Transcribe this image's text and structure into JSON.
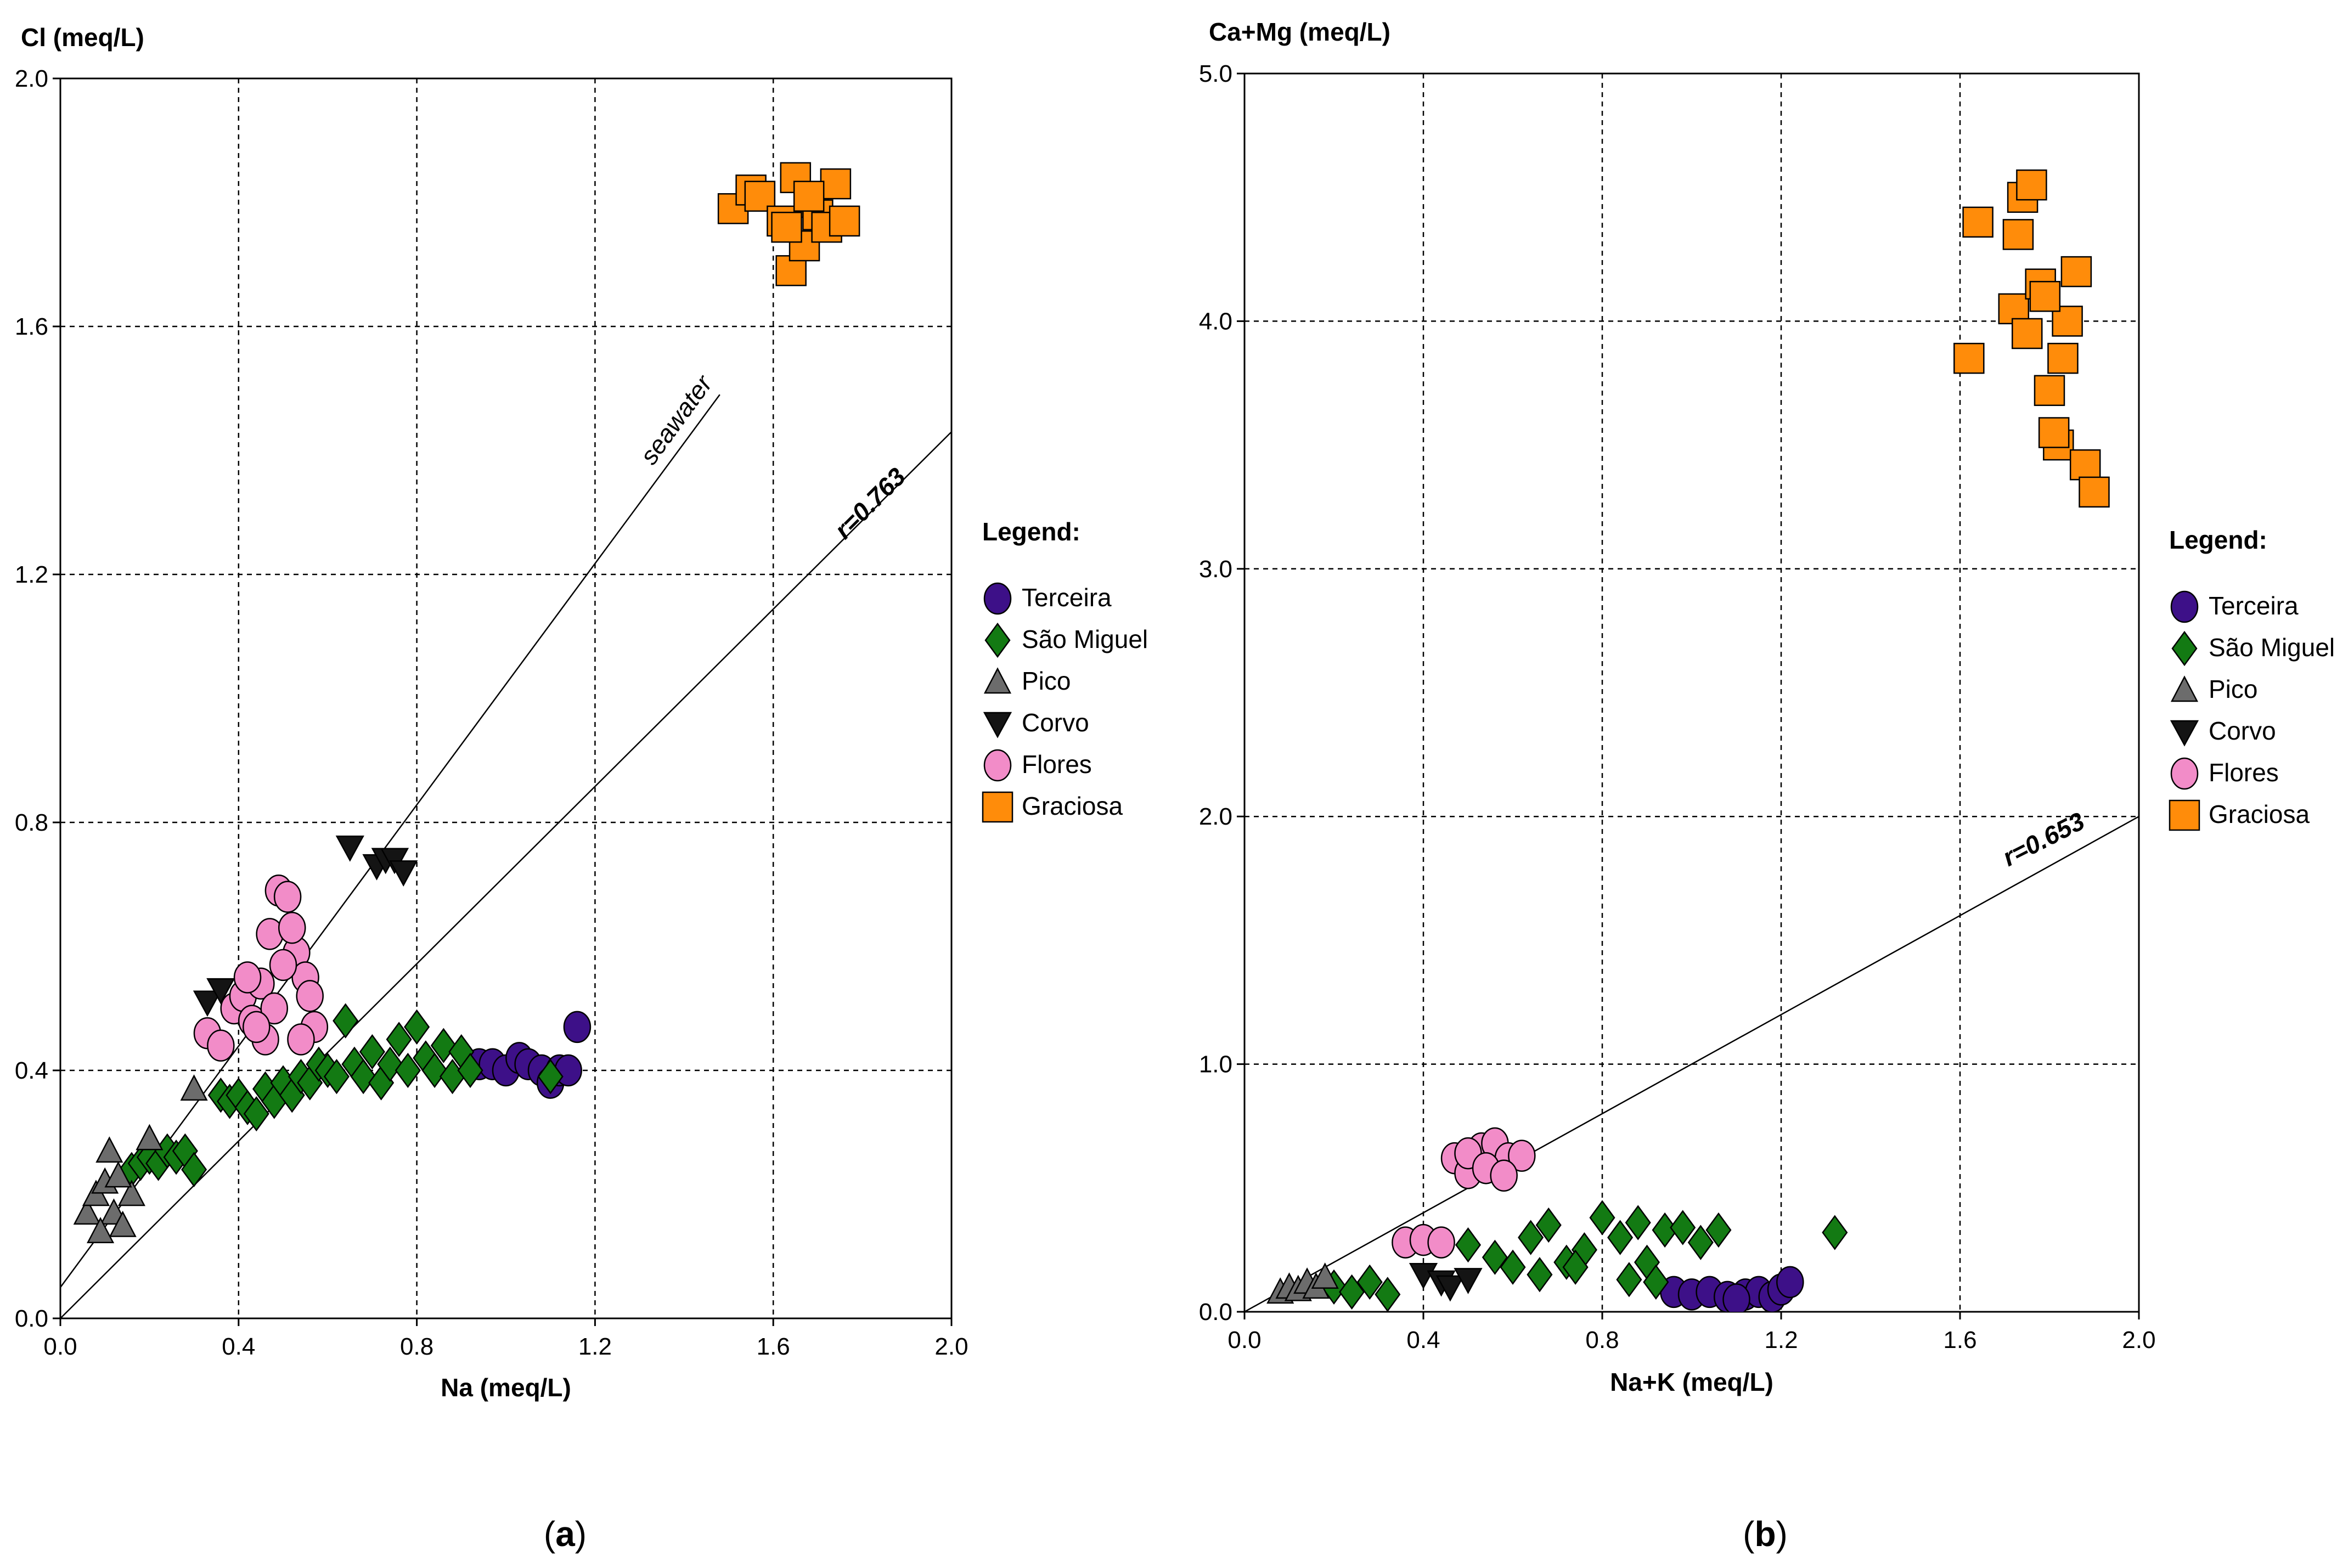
{
  "colors": {
    "terceira": "#3d1088",
    "sao_miguel": "#137a13",
    "pico": "#6c6c6c",
    "corvo": "#141414",
    "flores": "#f28cc8",
    "graciosa": "#ff8c0a",
    "grid": "#000000",
    "line": "#000000"
  },
  "chart_data": [
    {
      "type": "scatter",
      "panel_label": "(a)",
      "panel_letter": "a",
      "title": "",
      "xlabel": "Na (meq/L)",
      "ylabel": "Cl (meq/L)",
      "xlim": [
        0,
        2
      ],
      "ylim": [
        0,
        2
      ],
      "xticks": [
        "0.0",
        "0.4",
        "0.8",
        "1.2",
        "1.6",
        "2.0"
      ],
      "yticks": [
        "0.0",
        "0.4",
        "0.8",
        "1.2",
        "1.6",
        "2.0"
      ],
      "grid": true,
      "legend_title": "Legend:",
      "legend_position": "right",
      "lines": [
        {
          "label": "seawater",
          "x": [
            0.0,
            1.48
          ],
          "y": [
            0.05,
            1.49
          ]
        },
        {
          "label": "r=0.763",
          "x": [
            0.0,
            2.0
          ],
          "y": [
            0.0,
            1.43
          ]
        }
      ],
      "series": [
        {
          "name": "Terceira",
          "marker": "circle",
          "color": "terceira",
          "x": [
            0.94,
            0.97,
            1.0,
            1.03,
            1.05,
            1.08,
            1.1,
            1.12,
            1.14,
            1.16
          ],
          "y": [
            0.41,
            0.41,
            0.4,
            0.42,
            0.41,
            0.4,
            0.38,
            0.4,
            0.4,
            0.47
          ]
        },
        {
          "name": "São Miguel",
          "marker": "diamond",
          "color": "sao_miguel",
          "x": [
            0.16,
            0.18,
            0.2,
            0.22,
            0.24,
            0.26,
            0.28,
            0.3,
            0.36,
            0.38,
            0.4,
            0.42,
            0.44,
            0.46,
            0.48,
            0.5,
            0.52,
            0.54,
            0.56,
            0.58,
            0.6,
            0.62,
            0.64,
            0.66,
            0.68,
            0.7,
            0.72,
            0.74,
            0.76,
            0.78,
            0.8,
            0.82,
            0.84,
            0.86,
            0.88,
            0.9,
            0.92,
            1.1
          ],
          "y": [
            0.24,
            0.25,
            0.26,
            0.25,
            0.27,
            0.26,
            0.27,
            0.24,
            0.36,
            0.35,
            0.36,
            0.34,
            0.33,
            0.37,
            0.35,
            0.38,
            0.36,
            0.39,
            0.38,
            0.41,
            0.4,
            0.39,
            0.48,
            0.41,
            0.39,
            0.43,
            0.38,
            0.41,
            0.45,
            0.4,
            0.47,
            0.42,
            0.4,
            0.44,
            0.39,
            0.43,
            0.4,
            0.39
          ]
        },
        {
          "name": "Pico",
          "marker": "triangle-up",
          "color": "pico",
          "x": [
            0.06,
            0.08,
            0.1,
            0.12,
            0.14,
            0.16,
            0.11,
            0.13,
            0.09,
            0.2,
            0.3
          ],
          "y": [
            0.17,
            0.2,
            0.22,
            0.17,
            0.15,
            0.2,
            0.27,
            0.23,
            0.14,
            0.29,
            0.37
          ]
        },
        {
          "name": "Corvo",
          "marker": "triangle-down",
          "color": "corvo",
          "x": [
            0.33,
            0.36,
            0.65,
            0.71,
            0.73,
            0.75,
            0.77
          ],
          "y": [
            0.51,
            0.53,
            0.76,
            0.73,
            0.74,
            0.74,
            0.72
          ]
        },
        {
          "name": "Flores",
          "marker": "circle",
          "color": "flores",
          "x": [
            0.33,
            0.36,
            0.39,
            0.41,
            0.43,
            0.45,
            0.47,
            0.49,
            0.51,
            0.53,
            0.55,
            0.57,
            0.46,
            0.5,
            0.52,
            0.48,
            0.44,
            0.54,
            0.42,
            0.56
          ],
          "y": [
            0.46,
            0.44,
            0.5,
            0.52,
            0.48,
            0.54,
            0.62,
            0.69,
            0.68,
            0.59,
            0.55,
            0.47,
            0.45,
            0.57,
            0.63,
            0.5,
            0.47,
            0.45,
            0.55,
            0.52
          ]
        },
        {
          "name": "Graciosa",
          "marker": "square",
          "color": "graciosa",
          "x": [
            1.51,
            1.55,
            1.57,
            1.62,
            1.64,
            1.65,
            1.67,
            1.69,
            1.7,
            1.72,
            1.74,
            1.76,
            1.63,
            1.68
          ],
          "y": [
            1.79,
            1.82,
            1.81,
            1.77,
            1.69,
            1.84,
            1.73,
            1.8,
            1.78,
            1.76,
            1.83,
            1.77,
            1.76,
            1.81
          ]
        }
      ]
    },
    {
      "type": "scatter",
      "panel_label": "(b)",
      "panel_letter": "b",
      "title": "",
      "xlabel": "Na+K (meq/L)",
      "ylabel": "Ca+Mg (meq/L)",
      "xlim": [
        0,
        2
      ],
      "ylim": [
        0,
        5
      ],
      "xticks": [
        "0.0",
        "0.4",
        "0.8",
        "1.2",
        "1.6",
        "2.0"
      ],
      "yticks": [
        "0.0",
        "1.0",
        "2.0",
        "3.0",
        "4.0",
        "5.0"
      ],
      "grid": true,
      "legend_title": "Legend:",
      "legend_position": "right",
      "lines": [
        {
          "label": "r=0.653",
          "x": [
            0.0,
            2.0
          ],
          "y": [
            0.0,
            2.0
          ]
        }
      ],
      "series": [
        {
          "name": "Terceira",
          "marker": "circle",
          "color": "terceira",
          "x": [
            0.96,
            1.0,
            1.04,
            1.08,
            1.12,
            1.15,
            1.18,
            1.2,
            1.22,
            1.1
          ],
          "y": [
            0.08,
            0.07,
            0.08,
            0.06,
            0.07,
            0.08,
            0.06,
            0.09,
            0.12,
            0.05
          ]
        },
        {
          "name": "São Miguel",
          "marker": "diamond",
          "color": "sao_miguel",
          "x": [
            0.2,
            0.24,
            0.28,
            0.32,
            0.5,
            0.56,
            0.6,
            0.64,
            0.68,
            0.72,
            0.76,
            0.8,
            0.84,
            0.88,
            0.9,
            0.94,
            0.98,
            1.02,
            1.06,
            1.32,
            0.66,
            0.74,
            0.86,
            0.92
          ],
          "y": [
            0.1,
            0.08,
            0.12,
            0.07,
            0.27,
            0.22,
            0.18,
            0.3,
            0.35,
            0.2,
            0.25,
            0.38,
            0.3,
            0.36,
            0.2,
            0.33,
            0.34,
            0.28,
            0.33,
            0.32,
            0.15,
            0.18,
            0.13,
            0.12
          ]
        },
        {
          "name": "Pico",
          "marker": "triangle-up",
          "color": "pico",
          "x": [
            0.08,
            0.1,
            0.12,
            0.14,
            0.16,
            0.18
          ],
          "y": [
            0.08,
            0.1,
            0.09,
            0.12,
            0.1,
            0.14
          ]
        },
        {
          "name": "Corvo",
          "marker": "triangle-down",
          "color": "corvo",
          "x": [
            0.4,
            0.44,
            0.46,
            0.5
          ],
          "y": [
            0.15,
            0.12,
            0.1,
            0.13
          ]
        },
        {
          "name": "Flores",
          "marker": "circle",
          "color": "flores",
          "x": [
            0.36,
            0.4,
            0.44,
            0.47,
            0.5,
            0.53,
            0.56,
            0.59,
            0.62,
            0.5,
            0.54,
            0.58
          ],
          "y": [
            0.28,
            0.29,
            0.28,
            0.62,
            0.56,
            0.66,
            0.68,
            0.62,
            0.63,
            0.64,
            0.58,
            0.55
          ]
        },
        {
          "name": "Graciosa",
          "marker": "square",
          "color": "graciosa",
          "x": [
            1.62,
            1.64,
            1.72,
            1.74,
            1.76,
            1.78,
            1.8,
            1.82,
            1.84,
            1.86,
            1.88,
            1.9,
            1.73,
            1.75,
            1.79,
            1.83,
            1.81
          ],
          "y": [
            3.85,
            4.4,
            4.05,
            4.5,
            4.55,
            4.15,
            3.72,
            3.5,
            4.0,
            4.2,
            3.42,
            3.31,
            4.35,
            3.95,
            4.1,
            3.85,
            3.55
          ]
        }
      ]
    }
  ]
}
